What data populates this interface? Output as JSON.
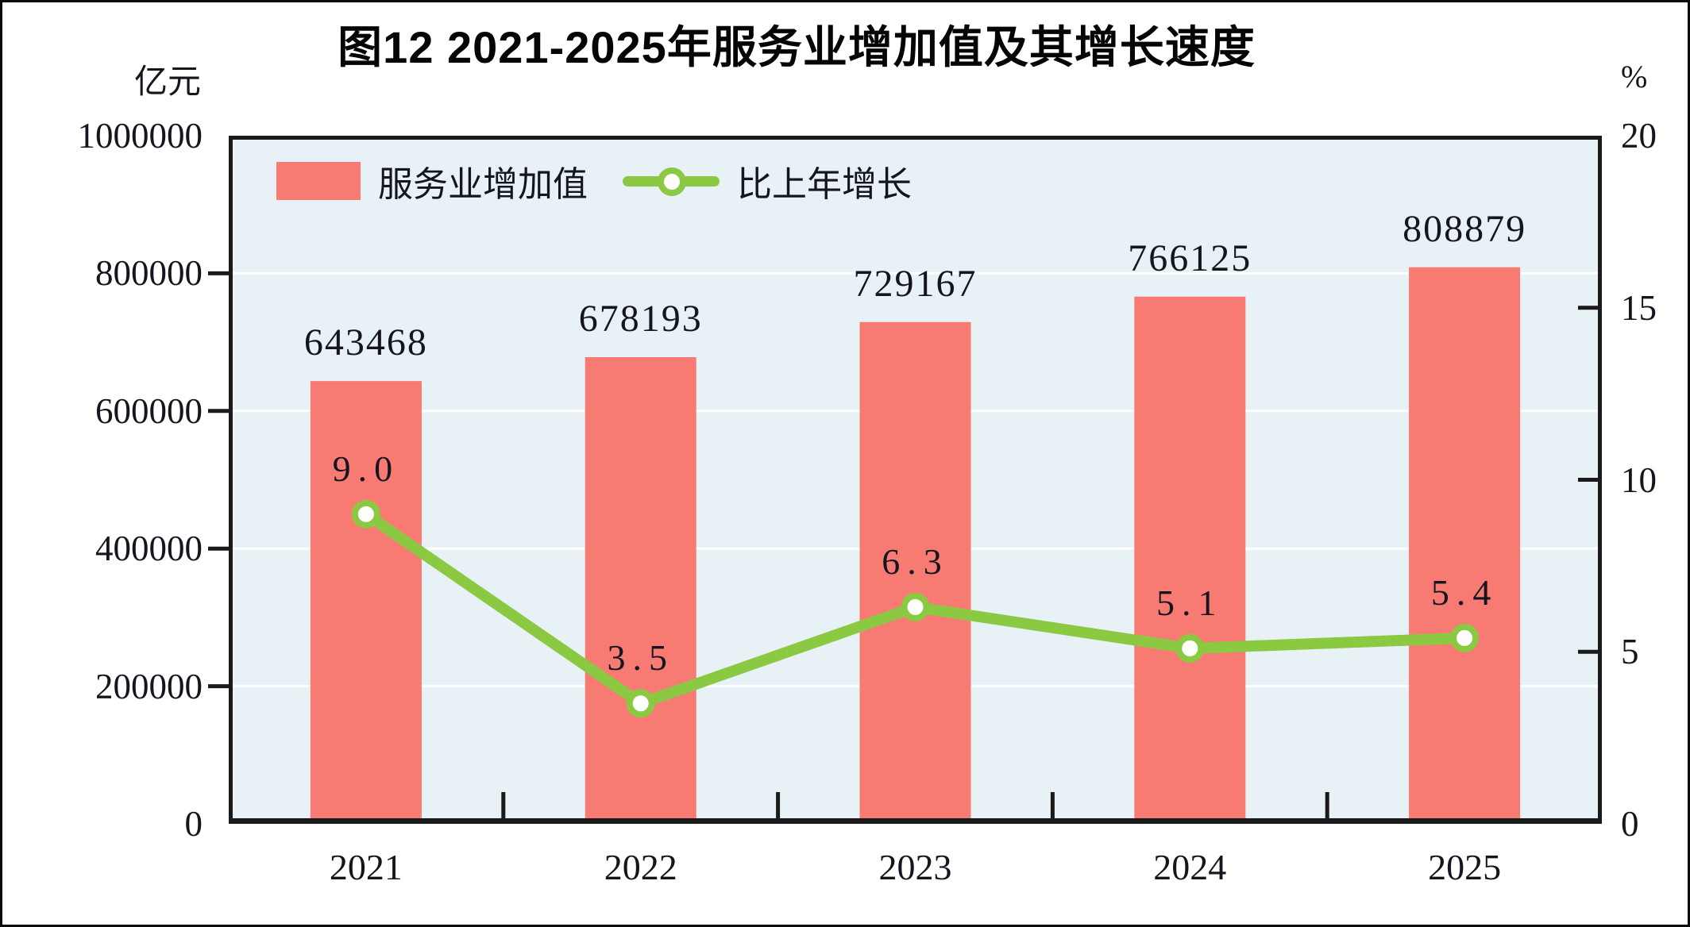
{
  "title": "图12  2021-2025年服务业增加值及其增长速度",
  "left_axis": {
    "unit": "亿元",
    "tick_labels": [
      "1000000",
      "800000",
      "600000",
      "400000",
      "200000",
      "0"
    ]
  },
  "right_axis": {
    "unit": "%",
    "tick_labels": [
      "20",
      "15",
      "10",
      "5",
      "0"
    ]
  },
  "legend": {
    "items": [
      {
        "label": "服务业增加值",
        "type": "bar"
      },
      {
        "label": "比上年增长",
        "type": "line"
      }
    ]
  },
  "chart_data": {
    "type": "bar+line",
    "title": "图12  2021-2025年服务业增加值及其增长速度",
    "categories": [
      "2021",
      "2022",
      "2023",
      "2024",
      "2025"
    ],
    "series": [
      {
        "name": "服务业增加值",
        "type": "bar",
        "axis": "left",
        "unit": "亿元",
        "values": [
          643468,
          678193,
          729167,
          766125,
          808879
        ]
      },
      {
        "name": "比上年增长",
        "type": "line",
        "axis": "right",
        "unit": "%",
        "values": [
          9.0,
          3.5,
          6.3,
          5.1,
          5.4
        ]
      }
    ],
    "left_ylim": [
      0,
      1000000
    ],
    "left_tick_step": 200000,
    "right_ylim": [
      0,
      20
    ],
    "right_tick_step": 5,
    "grid": true,
    "legend_position": "top-left"
  },
  "colors": {
    "bar": "#F87B73",
    "line": "#8BC942",
    "marker_fill": "#ffffff",
    "plot_background": "#E8F1F6",
    "gridline": "#ffffff",
    "axis_frame": "#1a1a1a",
    "text": "#15151f",
    "title_text": "#050505"
  }
}
